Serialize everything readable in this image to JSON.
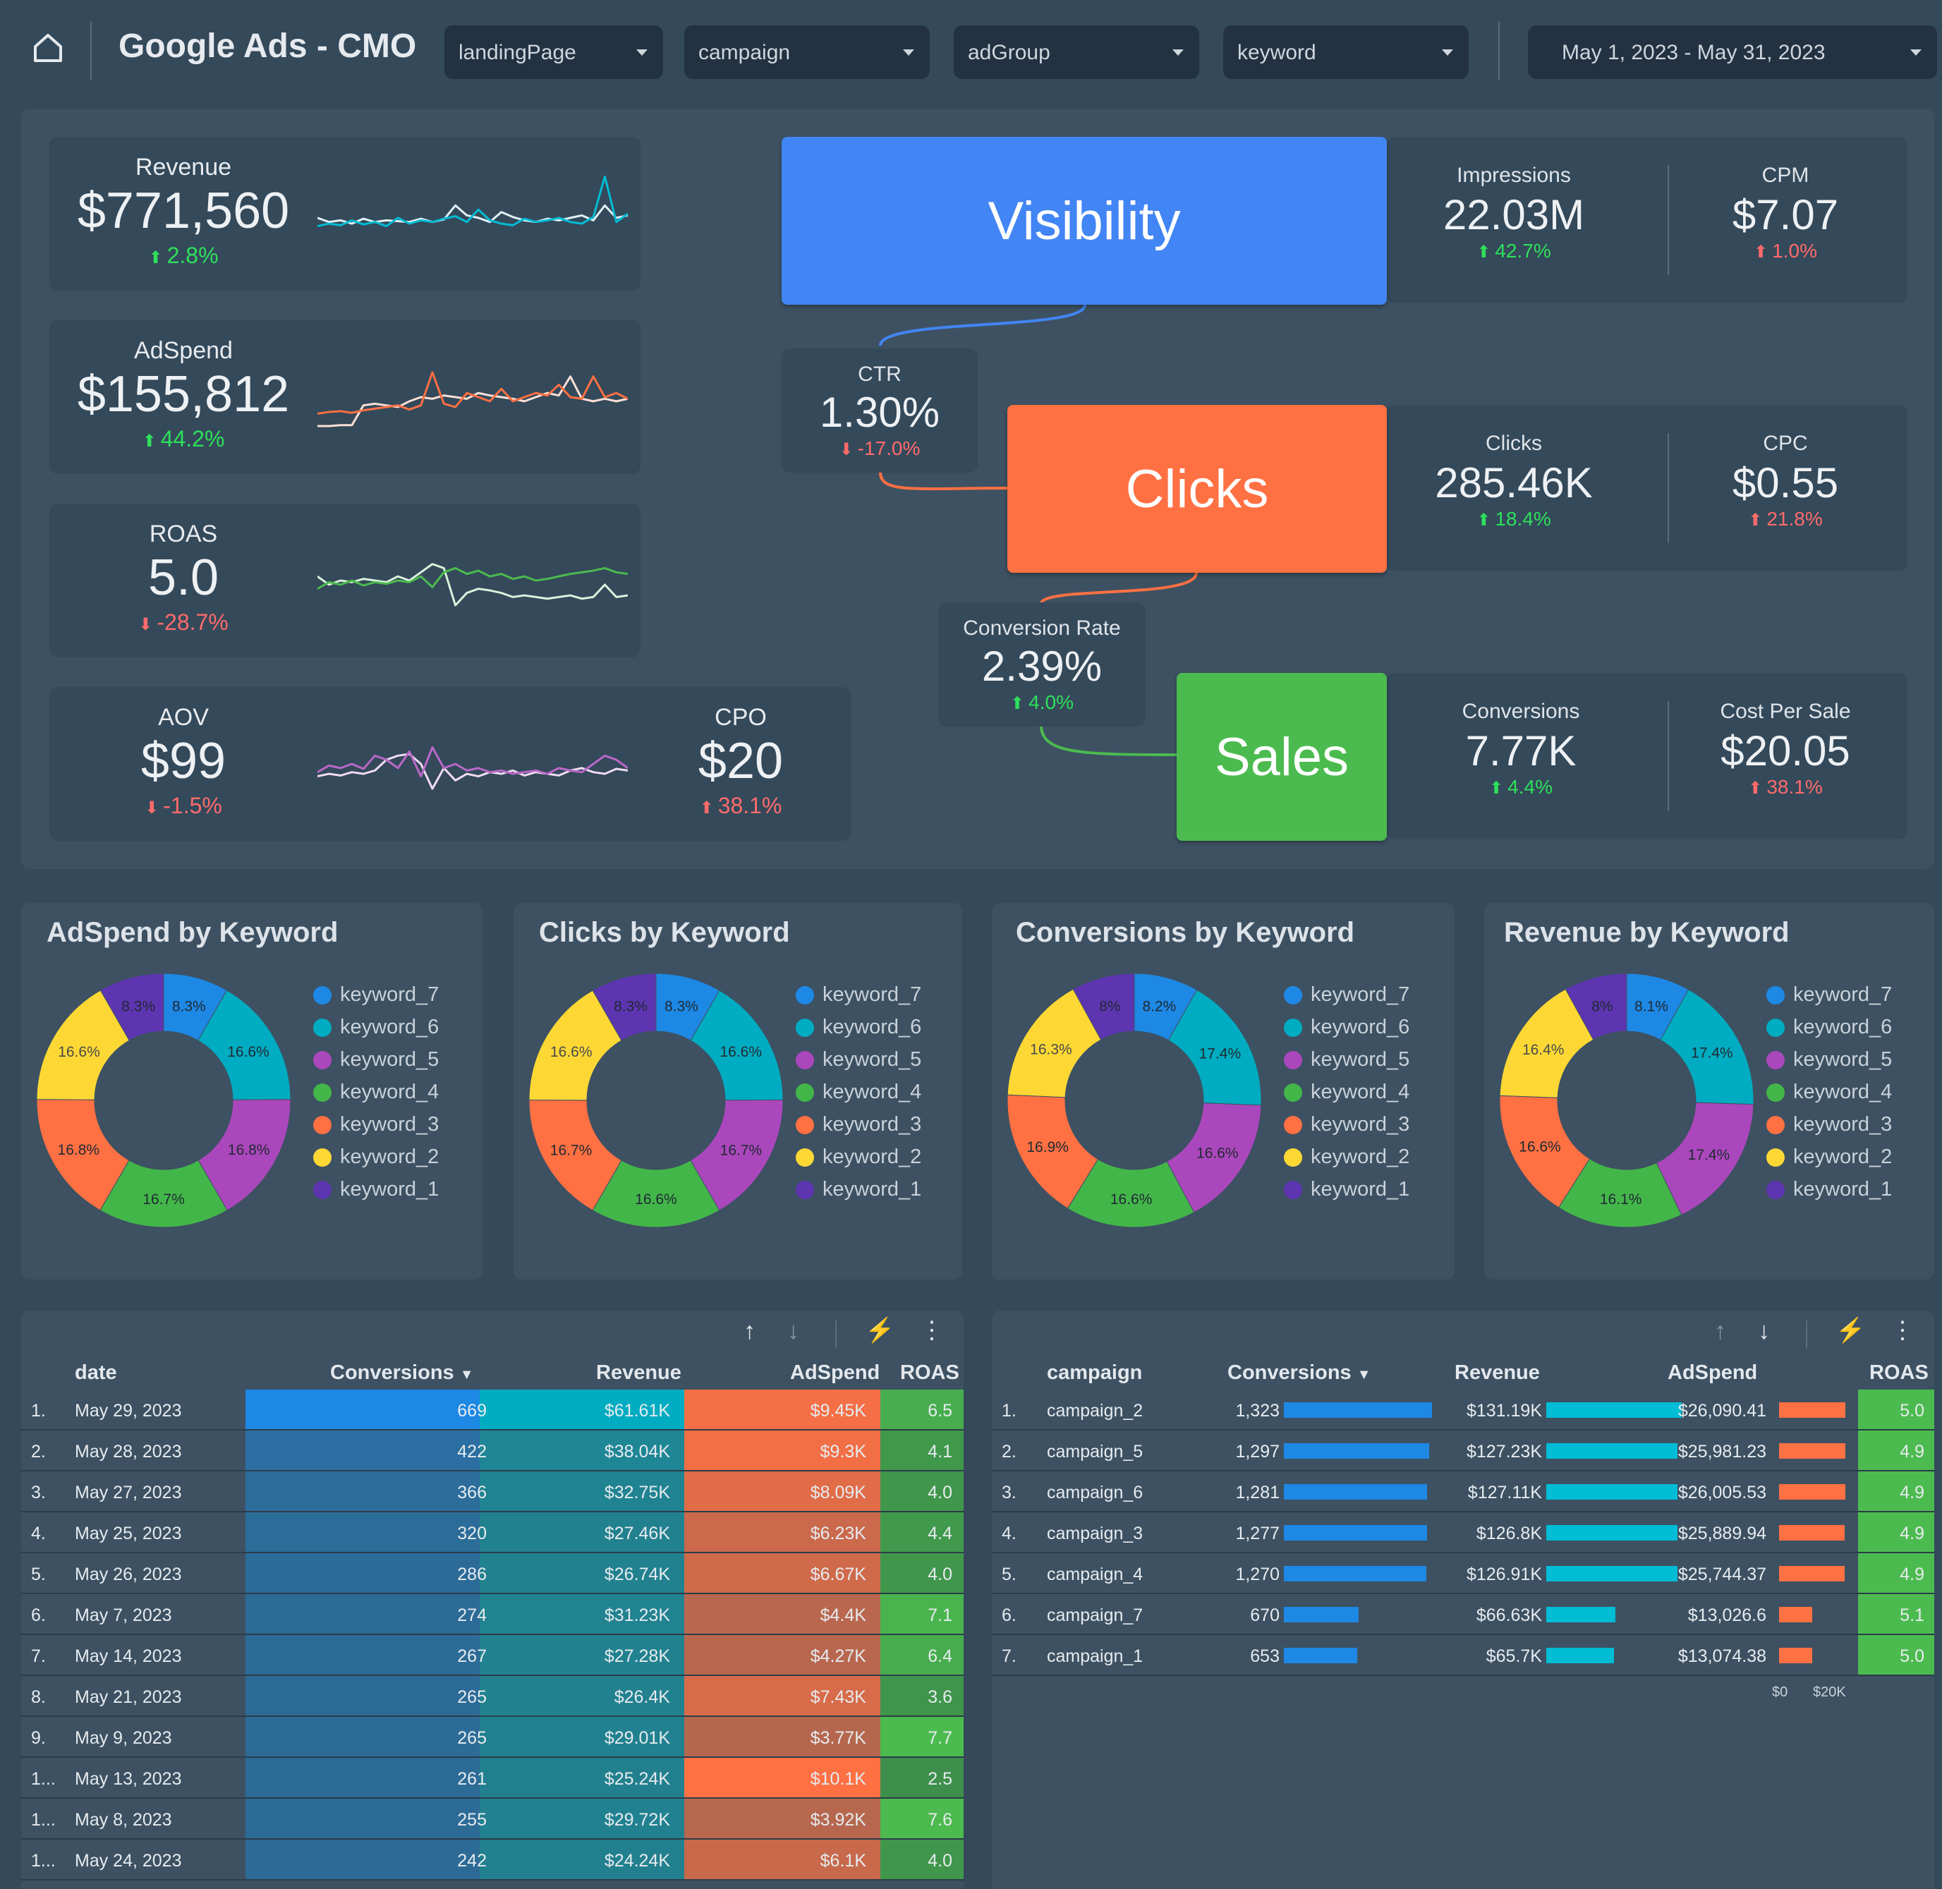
{
  "header": {
    "title": "Google Ads - CMO",
    "filters": [
      {
        "label": "landingPage"
      },
      {
        "label": "campaign"
      },
      {
        "label": "adGroup"
      },
      {
        "label": "keyword"
      }
    ],
    "date_range": "May 1, 2023 - May 31, 2023"
  },
  "kpis": {
    "revenue": {
      "label": "Revenue",
      "value": "$771,560",
      "change": "2.8%",
      "direction": "up"
    },
    "adspend": {
      "label": "AdSpend",
      "value": "$155,812",
      "change": "44.2%",
      "direction": "up"
    },
    "roas": {
      "label": "ROAS",
      "value": "5.0",
      "change": "-28.7%",
      "direction": "down"
    },
    "aov": {
      "label": "AOV",
      "value": "$99",
      "change": "-1.5%",
      "direction": "down"
    },
    "cpo": {
      "label": "CPO",
      "value": "$20",
      "change": "38.1%",
      "direction": "up"
    }
  },
  "funnel": {
    "visibility": {
      "label": "Visibility",
      "color": "#4285f4",
      "metrics": [
        {
          "label": "Impressions",
          "value": "22.03M",
          "change": "42.7%"
        },
        {
          "label": "CPM",
          "value": "$7.07",
          "change": "1.0%"
        }
      ]
    },
    "ctr": {
      "label": "CTR",
      "value": "1.30%",
      "change": "-17.0%"
    },
    "clicks": {
      "label": "Clicks",
      "color": "#ff7043",
      "metrics": [
        {
          "label": "Clicks",
          "value": "285.46K",
          "change": "18.4%"
        },
        {
          "label": "CPC",
          "value": "$0.55",
          "change": "21.8%"
        }
      ]
    },
    "conv_rate": {
      "label": "Conversion Rate",
      "value": "2.39%",
      "change": "4.0%"
    },
    "sales": {
      "label": "Sales",
      "color": "#4cbb4f",
      "metrics": [
        {
          "label": "Conversions",
          "value": "7.77K",
          "change": "4.4%"
        },
        {
          "label": "Cost Per Sale",
          "value": "$20.05",
          "change": "38.1%"
        }
      ]
    }
  },
  "colors": {
    "keyword_7": "#1e88e5",
    "keyword_6": "#00acc1",
    "keyword_5": "#ab47bc",
    "keyword_4": "#43b649",
    "keyword_3": "#ff7043",
    "keyword_2": "#fdd835",
    "keyword_1": "#5e35b1"
  },
  "chart_data": [
    {
      "type": "pie",
      "title": "AdSpend by Keyword",
      "categories": [
        "keyword_7",
        "keyword_6",
        "keyword_5",
        "keyword_4",
        "keyword_3",
        "keyword_2",
        "keyword_1"
      ],
      "values": [
        8.3,
        16.6,
        16.8,
        16.7,
        16.8,
        16.6,
        8.3
      ],
      "labels": [
        "8.3%",
        "16.6%",
        "16.8%",
        "16.7%",
        "16.8%",
        "16.6%",
        "8.3%"
      ],
      "legend": "right"
    },
    {
      "type": "pie",
      "title": "Clicks by Keyword",
      "categories": [
        "keyword_7",
        "keyword_6",
        "keyword_5",
        "keyword_4",
        "keyword_3",
        "keyword_2",
        "keyword_1"
      ],
      "values": [
        8.3,
        16.6,
        16.7,
        16.6,
        16.7,
        16.6,
        8.3
      ],
      "labels": [
        "8.3%",
        "16.6%",
        "16.7%",
        "16.6%",
        "16.7%",
        "16.6%",
        "8.3%"
      ],
      "legend": "right"
    },
    {
      "type": "pie",
      "title": "Conversions by Keyword",
      "categories": [
        "keyword_7",
        "keyword_6",
        "keyword_5",
        "keyword_4",
        "keyword_3",
        "keyword_2",
        "keyword_1"
      ],
      "values": [
        8.2,
        17.4,
        16.6,
        16.6,
        16.9,
        16.3,
        8.0
      ],
      "labels": [
        "8.2%",
        "17.4%",
        "16.6%",
        "16.6%",
        "16.9%",
        "16.3%",
        "8%"
      ],
      "legend": "right"
    },
    {
      "type": "pie",
      "title": "Revenue by Keyword",
      "categories": [
        "keyword_7",
        "keyword_6",
        "keyword_5",
        "keyword_4",
        "keyword_3",
        "keyword_2",
        "keyword_1"
      ],
      "values": [
        8.1,
        17.4,
        17.4,
        16.1,
        16.6,
        16.4,
        8.0
      ],
      "labels": [
        "8.1%",
        "17.4%",
        "17.4%",
        "16.1%",
        "16.6%",
        "16.4%",
        "8%"
      ],
      "legend": "right"
    }
  ],
  "sparklines": {
    "revenue": {
      "a": [
        0.35,
        0.38,
        0.36,
        0.42,
        0.37,
        0.4,
        0.35,
        0.45,
        0.38,
        0.42,
        0.4,
        0.44,
        0.47,
        0.4,
        0.55,
        0.42,
        0.38,
        0.36,
        0.44,
        0.4,
        0.42,
        0.45,
        0.4,
        0.38,
        0.46,
        0.95,
        0.4,
        0.5
      ],
      "b": [
        0.45,
        0.4,
        0.42,
        0.38,
        0.44,
        0.4,
        0.42,
        0.41,
        0.4,
        0.44,
        0.4,
        0.43,
        0.6,
        0.48,
        0.45,
        0.4,
        0.52,
        0.46,
        0.42,
        0.4,
        0.44,
        0.42,
        0.45,
        0.48,
        0.42,
        0.6,
        0.45,
        0.48
      ]
    },
    "adspend": {
      "a": [
        0.3,
        0.32,
        0.33,
        0.31,
        0.34,
        0.36,
        0.38,
        0.4,
        0.35,
        0.4,
        0.8,
        0.42,
        0.38,
        0.55,
        0.5,
        0.45,
        0.6,
        0.45,
        0.5,
        0.55,
        0.52,
        0.65,
        0.5,
        0.48,
        0.75,
        0.5,
        0.55,
        0.48
      ],
      "b": [
        0.15,
        0.15,
        0.16,
        0.16,
        0.4,
        0.42,
        0.4,
        0.38,
        0.45,
        0.5,
        0.48,
        0.52,
        0.5,
        0.48,
        0.55,
        0.52,
        0.5,
        0.48,
        0.45,
        0.5,
        0.55,
        0.52,
        0.75,
        0.48,
        0.45,
        0.48,
        0.45,
        0.48
      ]
    },
    "roas": {
      "a": [
        0.4,
        0.48,
        0.45,
        0.5,
        0.44,
        0.48,
        0.46,
        0.5,
        0.48,
        0.55,
        0.42,
        0.6,
        0.65,
        0.58,
        0.62,
        0.55,
        0.58,
        0.52,
        0.55,
        0.5,
        0.52,
        0.55,
        0.58,
        0.6,
        0.62,
        0.65,
        0.6,
        0.58
      ],
      "b": [
        0.55,
        0.45,
        0.5,
        0.48,
        0.52,
        0.5,
        0.48,
        0.55,
        0.5,
        0.6,
        0.7,
        0.65,
        0.2,
        0.35,
        0.4,
        0.38,
        0.35,
        0.3,
        0.32,
        0.3,
        0.28,
        0.3,
        0.32,
        0.28,
        0.3,
        0.45,
        0.3,
        0.32
      ]
    },
    "aov": {
      "a": [
        0.4,
        0.48,
        0.45,
        0.5,
        0.44,
        0.6,
        0.55,
        0.45,
        0.65,
        0.35,
        0.7,
        0.45,
        0.5,
        0.42,
        0.45,
        0.4,
        0.42,
        0.38,
        0.4,
        0.42,
        0.38,
        0.45,
        0.42,
        0.4,
        0.5,
        0.6,
        0.55,
        0.45
      ],
      "b": [
        0.35,
        0.38,
        0.36,
        0.4,
        0.38,
        0.42,
        0.55,
        0.6,
        0.62,
        0.5,
        0.2,
        0.45,
        0.3,
        0.38,
        0.35,
        0.4,
        0.38,
        0.42,
        0.36,
        0.4,
        0.38,
        0.36,
        0.42,
        0.45,
        0.4,
        0.38,
        0.44,
        0.42
      ]
    }
  },
  "table_left": {
    "headers": {
      "index": "",
      "date": "date",
      "conversions": "Conversions",
      "revenue": "Revenue",
      "adspend": "AdSpend",
      "roas": "ROAS"
    },
    "rows": [
      {
        "idx": "1.",
        "date": "May 29, 2023",
        "conversions": "669",
        "revenue": "$61.61K",
        "adspend": "$9.45K",
        "roas": "6.5"
      },
      {
        "idx": "2.",
        "date": "May 28, 2023",
        "conversions": "422",
        "revenue": "$38.04K",
        "adspend": "$9.3K",
        "roas": "4.1"
      },
      {
        "idx": "3.",
        "date": "May 27, 2023",
        "conversions": "366",
        "revenue": "$32.75K",
        "adspend": "$8.09K",
        "roas": "4.0"
      },
      {
        "idx": "4.",
        "date": "May 25, 2023",
        "conversions": "320",
        "revenue": "$27.46K",
        "adspend": "$6.23K",
        "roas": "4.4"
      },
      {
        "idx": "5.",
        "date": "May 26, 2023",
        "conversions": "286",
        "revenue": "$26.74K",
        "adspend": "$6.67K",
        "roas": "4.0"
      },
      {
        "idx": "6.",
        "date": "May 7, 2023",
        "conversions": "274",
        "revenue": "$31.23K",
        "adspend": "$4.4K",
        "roas": "7.1"
      },
      {
        "idx": "7.",
        "date": "May 14, 2023",
        "conversions": "267",
        "revenue": "$27.28K",
        "adspend": "$4.27K",
        "roas": "6.4"
      },
      {
        "idx": "8.",
        "date": "May 21, 2023",
        "conversions": "265",
        "revenue": "$26.4K",
        "adspend": "$7.43K",
        "roas": "3.6"
      },
      {
        "idx": "9.",
        "date": "May 9, 2023",
        "conversions": "265",
        "revenue": "$29.01K",
        "adspend": "$3.77K",
        "roas": "7.7"
      },
      {
        "idx": "1...",
        "date": "May 13, 2023",
        "conversions": "261",
        "revenue": "$25.24K",
        "adspend": "$10.1K",
        "roas": "2.5"
      },
      {
        "idx": "1...",
        "date": "May 8, 2023",
        "conversions": "255",
        "revenue": "$29.72K",
        "adspend": "$3.92K",
        "roas": "7.6"
      },
      {
        "idx": "1...",
        "date": "May 24, 2023",
        "conversions": "242",
        "revenue": "$24.24K",
        "adspend": "$6.1K",
        "roas": "4.0"
      }
    ]
  },
  "table_right": {
    "headers": {
      "campaign": "campaign",
      "conversions": "Conversions",
      "revenue": "Revenue",
      "adspend": "AdSpend",
      "roas": "ROAS"
    },
    "rows": [
      {
        "idx": "1.",
        "campaign": "campaign_2",
        "conversions": "1,323",
        "conv_num": 1323,
        "revenue": "$131.19K",
        "rev_num": 131.19,
        "adspend": "$26,090.41",
        "ad_num": 26090.41,
        "roas": "5.0"
      },
      {
        "idx": "2.",
        "campaign": "campaign_5",
        "conversions": "1,297",
        "conv_num": 1297,
        "revenue": "$127.23K",
        "rev_num": 127.23,
        "adspend": "$25,981.23",
        "ad_num": 25981.23,
        "roas": "4.9"
      },
      {
        "idx": "3.",
        "campaign": "campaign_6",
        "conversions": "1,281",
        "conv_num": 1281,
        "revenue": "$127.11K",
        "rev_num": 127.11,
        "adspend": "$26,005.53",
        "ad_num": 26005.53,
        "roas": "4.9"
      },
      {
        "idx": "4.",
        "campaign": "campaign_3",
        "conversions": "1,277",
        "conv_num": 1277,
        "revenue": "$126.8K",
        "rev_num": 126.8,
        "adspend": "$25,889.94",
        "ad_num": 25889.94,
        "roas": "4.9"
      },
      {
        "idx": "5.",
        "campaign": "campaign_4",
        "conversions": "1,270",
        "conv_num": 1270,
        "revenue": "$126.91K",
        "rev_num": 126.91,
        "adspend": "$25,744.37",
        "ad_num": 25744.37,
        "roas": "4.9"
      },
      {
        "idx": "6.",
        "campaign": "campaign_7",
        "conversions": "670",
        "conv_num": 670,
        "revenue": "$66.63K",
        "rev_num": 66.63,
        "adspend": "$13,026.6",
        "ad_num": 13026.6,
        "roas": "5.1"
      },
      {
        "idx": "7.",
        "campaign": "campaign_1",
        "conversions": "653",
        "conv_num": 653,
        "revenue": "$65.7K",
        "rev_num": 65.7,
        "adspend": "$13,074.38",
        "ad_num": 13074.38,
        "roas": "5.0"
      }
    ],
    "axis_ticks": [
      "$0",
      "$20K"
    ]
  }
}
